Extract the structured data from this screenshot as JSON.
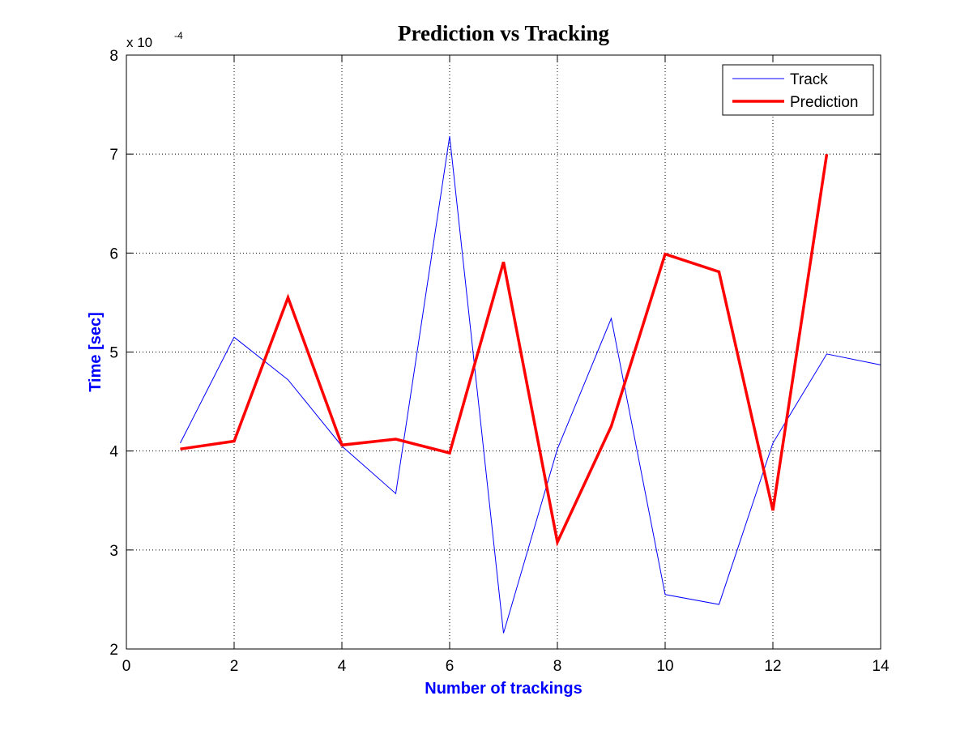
{
  "chart_data": {
    "type": "line",
    "title": "Prediction vs Tracking",
    "xlabel": "Number of trackings",
    "ylabel": "Time [sec]",
    "y_multiplier_text": "x 10",
    "y_multiplier_exponent": "-4",
    "xlim": [
      0,
      14
    ],
    "ylim": [
      2,
      8
    ],
    "xticks": [
      0,
      2,
      4,
      6,
      8,
      10,
      12,
      14
    ],
    "yticks": [
      2,
      3,
      4,
      5,
      6,
      7,
      8
    ],
    "grid": true,
    "legend_position": "top-right",
    "series": [
      {
        "name": "Track",
        "color": "#0000ff",
        "x": [
          1,
          2,
          3,
          4,
          5,
          6,
          7,
          8,
          9,
          10,
          11,
          12,
          13,
          14
        ],
        "y": [
          4.08,
          5.15,
          4.72,
          4.05,
          3.57,
          7.18,
          2.16,
          4.02,
          5.34,
          2.55,
          2.45,
          4.08,
          4.98,
          4.87
        ]
      },
      {
        "name": "Prediction",
        "color": "#ff0000",
        "x": [
          1,
          2,
          3,
          4,
          5,
          6,
          7,
          8,
          9,
          10,
          11,
          12,
          13
        ],
        "y": [
          4.02,
          4.1,
          5.55,
          4.06,
          4.12,
          3.98,
          5.91,
          3.08,
          4.25,
          5.99,
          5.81,
          3.4,
          7.0
        ]
      }
    ]
  }
}
